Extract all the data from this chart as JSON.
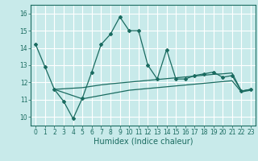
{
  "title": "",
  "xlabel": "Humidex (Indice chaleur)",
  "bg_color": "#c8eaea",
  "grid_color": "#ffffff",
  "line_color": "#1a6b60",
  "xlim": [
    -0.5,
    23.5
  ],
  "ylim": [
    9.5,
    16.5
  ],
  "xticks": [
    0,
    1,
    2,
    3,
    4,
    5,
    6,
    7,
    8,
    9,
    10,
    11,
    12,
    13,
    14,
    15,
    16,
    17,
    18,
    19,
    20,
    21,
    22,
    23
  ],
  "yticks": [
    10,
    11,
    12,
    13,
    14,
    15,
    16
  ],
  "series1_x": [
    0,
    1,
    2,
    3,
    4,
    5,
    6,
    7,
    8,
    9,
    10,
    11,
    12,
    13,
    14,
    15,
    16,
    17,
    18,
    19,
    20,
    21,
    22,
    23
  ],
  "series1_y": [
    14.2,
    12.9,
    11.6,
    10.9,
    9.9,
    11.1,
    12.6,
    14.2,
    14.8,
    15.8,
    15.0,
    15.0,
    13.0,
    12.2,
    13.9,
    12.2,
    12.2,
    12.4,
    12.5,
    12.6,
    12.3,
    12.4,
    11.5,
    11.6
  ],
  "series2_x": [
    2,
    5,
    6,
    7,
    8,
    9,
    10,
    11,
    12,
    13,
    14,
    15,
    16,
    17,
    18,
    19,
    20,
    21,
    22,
    23
  ],
  "series2_y": [
    11.6,
    11.7,
    11.78,
    11.86,
    11.92,
    11.97,
    12.02,
    12.07,
    12.12,
    12.17,
    12.22,
    12.27,
    12.32,
    12.37,
    12.42,
    12.47,
    12.5,
    12.55,
    11.5,
    11.6
  ],
  "series3_x": [
    2,
    5,
    6,
    7,
    8,
    9,
    10,
    11,
    12,
    13,
    14,
    15,
    16,
    17,
    18,
    19,
    20,
    21,
    22,
    23
  ],
  "series3_y": [
    11.6,
    11.05,
    11.15,
    11.25,
    11.35,
    11.45,
    11.55,
    11.6,
    11.65,
    11.7,
    11.75,
    11.8,
    11.85,
    11.9,
    11.95,
    12.0,
    12.05,
    12.1,
    11.45,
    11.55
  ],
  "tick_fontsize": 5.5,
  "xlabel_fontsize": 7
}
